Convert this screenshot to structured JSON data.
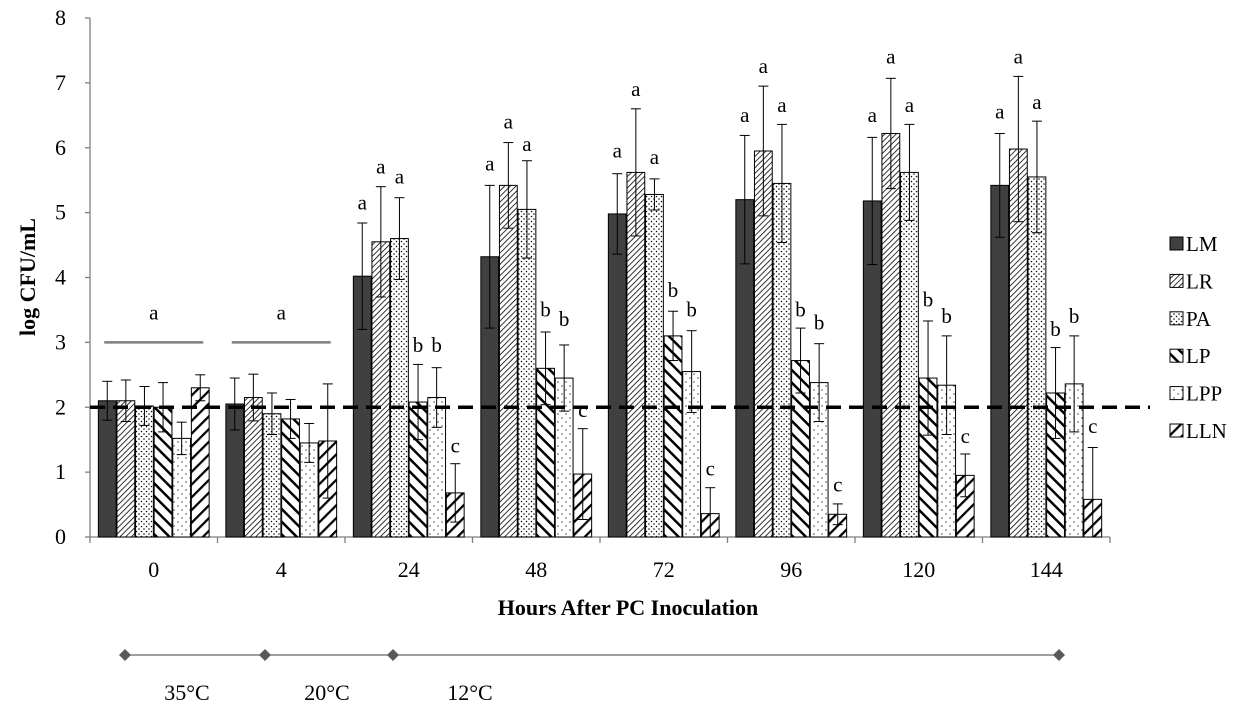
{
  "chart_data": {
    "type": "bar",
    "title": "",
    "xlabel": "Hours After PC Inoculation",
    "ylabel": "log CFU/mL",
    "ylim": [
      0,
      8
    ],
    "yticks": [
      "0",
      "1",
      "2",
      "3",
      "4",
      "5",
      "6",
      "7",
      "8"
    ],
    "grid": false,
    "legend_position": "right",
    "reference_line": 2,
    "categories": [
      "0",
      "4",
      "24",
      "48",
      "72",
      "96",
      "120",
      "144"
    ],
    "series": [
      {
        "name": "LM",
        "pattern": "solid",
        "values": [
          2.1,
          2.05,
          4.02,
          4.32,
          4.98,
          5.2,
          5.18,
          5.42
        ],
        "errors": [
          0.3,
          0.4,
          0.82,
          1.1,
          0.62,
          0.99,
          0.98,
          0.8
        ]
      },
      {
        "name": "LR",
        "pattern": "dense",
        "values": [
          2.1,
          2.15,
          4.55,
          5.42,
          5.62,
          5.95,
          6.22,
          5.98
        ],
        "errors": [
          0.32,
          0.36,
          0.85,
          0.66,
          0.98,
          1.0,
          0.85,
          1.12
        ]
      },
      {
        "name": "PA",
        "pattern": "dots",
        "values": [
          2.02,
          1.9,
          4.6,
          5.05,
          5.28,
          5.45,
          5.62,
          5.55
        ],
        "errors": [
          0.3,
          0.32,
          0.63,
          0.75,
          0.24,
          0.91,
          0.74,
          0.86
        ]
      },
      {
        "name": "LP",
        "pattern": "diag",
        "values": [
          2.0,
          1.82,
          2.08,
          2.6,
          3.1,
          2.72,
          2.45,
          2.22
        ],
        "errors": [
          0.38,
          0.3,
          0.58,
          0.56,
          0.38,
          0.5,
          0.88,
          0.7
        ]
      },
      {
        "name": "LPP",
        "pattern": "sparse",
        "values": [
          1.52,
          1.45,
          2.15,
          2.45,
          2.55,
          2.38,
          2.34,
          2.36
        ],
        "errors": [
          0.25,
          0.3,
          0.46,
          0.51,
          0.63,
          0.6,
          0.76,
          0.74
        ]
      },
      {
        "name": "LLN",
        "pattern": "thick",
        "values": [
          2.3,
          1.48,
          0.68,
          0.97,
          0.36,
          0.35,
          0.95,
          0.58
        ],
        "errors": [
          0.2,
          0.88,
          0.45,
          0.7,
          0.4,
          0.16,
          0.33,
          0.8
        ]
      }
    ],
    "letters": [
      {
        "text": "a",
        "group": 0,
        "series": 2.5,
        "y": 3.35
      },
      {
        "text": "a",
        "group": 1,
        "series": 2.5,
        "y": 3.35
      },
      {
        "text": "a",
        "group": 2,
        "series": 0,
        "y": 5.05
      },
      {
        "text": "a",
        "group": 2,
        "series": 1,
        "y": 5.6
      },
      {
        "text": "a",
        "group": 2,
        "series": 2,
        "y": 5.45
      },
      {
        "text": "b",
        "group": 2,
        "series": 3,
        "y": 2.85
      },
      {
        "text": "b",
        "group": 2,
        "series": 4,
        "y": 2.85
      },
      {
        "text": "c",
        "group": 2,
        "series": 5,
        "y": 1.3
      },
      {
        "text": "a",
        "group": 3,
        "series": 0,
        "y": 5.65
      },
      {
        "text": "a",
        "group": 3,
        "series": 1,
        "y": 6.3
      },
      {
        "text": "a",
        "group": 3,
        "series": 2,
        "y": 5.95
      },
      {
        "text": "b",
        "group": 3,
        "series": 3,
        "y": 3.4
      },
      {
        "text": "b",
        "group": 3,
        "series": 4,
        "y": 3.25
      },
      {
        "text": "c",
        "group": 3,
        "series": 5,
        "y": 1.85
      },
      {
        "text": "a",
        "group": 4,
        "series": 0,
        "y": 5.85
      },
      {
        "text": "a",
        "group": 4,
        "series": 1,
        "y": 6.8
      },
      {
        "text": "a",
        "group": 4,
        "series": 2,
        "y": 5.75
      },
      {
        "text": "b",
        "group": 4,
        "series": 3,
        "y": 3.7
      },
      {
        "text": "b",
        "group": 4,
        "series": 4,
        "y": 3.4
      },
      {
        "text": "c",
        "group": 4,
        "series": 5,
        "y": 0.95
      },
      {
        "text": "a",
        "group": 5,
        "series": 0,
        "y": 6.4
      },
      {
        "text": "a",
        "group": 5,
        "series": 1,
        "y": 7.15
      },
      {
        "text": "a",
        "group": 5,
        "series": 2,
        "y": 6.55
      },
      {
        "text": "b",
        "group": 5,
        "series": 3,
        "y": 3.4
      },
      {
        "text": "b",
        "group": 5,
        "series": 4,
        "y": 3.2
      },
      {
        "text": "c",
        "group": 5,
        "series": 5,
        "y": 0.7
      },
      {
        "text": "a",
        "group": 6,
        "series": 0,
        "y": 6.4
      },
      {
        "text": "a",
        "group": 6,
        "series": 1,
        "y": 7.3
      },
      {
        "text": "a",
        "group": 6,
        "series": 2,
        "y": 6.55
      },
      {
        "text": "b",
        "group": 6,
        "series": 3,
        "y": 3.55
      },
      {
        "text": "b",
        "group": 6,
        "series": 4,
        "y": 3.3
      },
      {
        "text": "c",
        "group": 6,
        "series": 5,
        "y": 1.45
      },
      {
        "text": "a",
        "group": 7,
        "series": 0,
        "y": 6.45
      },
      {
        "text": "a",
        "group": 7,
        "series": 1,
        "y": 7.3
      },
      {
        "text": "a",
        "group": 7,
        "series": 2,
        "y": 6.6
      },
      {
        "text": "b",
        "group": 7,
        "series": 3,
        "y": 3.1
      },
      {
        "text": "b",
        "group": 7,
        "series": 4,
        "y": 3.3
      },
      {
        "text": "c",
        "group": 7,
        "series": 5,
        "y": 1.6
      }
    ],
    "group_brackets": [
      {
        "group": 0,
        "y": 3.0
      },
      {
        "group": 1,
        "y": 3.0
      }
    ],
    "temperature_timeline": {
      "segments": [
        {
          "label": "35°C",
          "start": "0",
          "end": "4"
        },
        {
          "label": "20°C",
          "start": "4",
          "end": "24"
        },
        {
          "label": "12°C",
          "start": "24",
          "end": "144"
        }
      ]
    }
  }
}
